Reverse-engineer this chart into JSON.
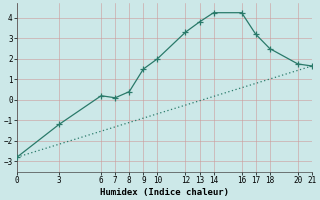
{
  "xlabel": "Humidex (Indice chaleur)",
  "background_color": "#cce8e8",
  "grid_color": "#b0cccc",
  "line_color": "#2a7a6a",
  "xlim": [
    0,
    21
  ],
  "ylim": [
    -3.5,
    4.7
  ],
  "xticks": [
    0,
    3,
    6,
    7,
    8,
    9,
    10,
    12,
    13,
    14,
    16,
    17,
    18,
    20,
    21
  ],
  "yticks": [
    -3,
    -2,
    -1,
    0,
    1,
    2,
    3,
    4
  ],
  "line1_x": [
    0,
    3,
    6,
    7,
    8,
    9,
    10,
    12,
    13,
    14,
    16,
    17,
    18,
    20,
    21
  ],
  "line1_y": [
    -2.8,
    -1.2,
    0.2,
    0.1,
    0.4,
    1.5,
    2.0,
    3.3,
    3.8,
    4.25,
    4.25,
    3.2,
    2.5,
    1.75,
    1.65
  ],
  "line2_x": [
    0,
    21
  ],
  "line2_y": [
    -2.8,
    1.65
  ],
  "markersize": 4,
  "linewidth": 0.9
}
